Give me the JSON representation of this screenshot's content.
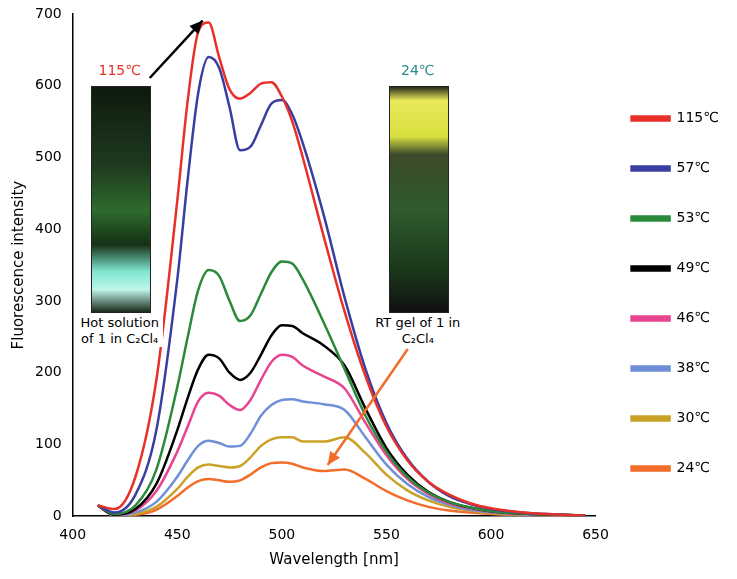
{
  "chart_data": {
    "type": "line",
    "x_label": "Wavelength [nm]",
    "y_label": "Fluorescence intensity",
    "x": [
      412,
      420,
      430,
      440,
      450,
      455,
      460,
      465,
      470,
      475,
      480,
      485,
      490,
      495,
      500,
      505,
      510,
      520,
      530,
      540,
      550,
      560,
      570,
      580,
      590,
      600,
      620,
      645
    ],
    "series": [
      {
        "name": "115℃",
        "color": "#e8302a",
        "values": [
          15,
          10,
          55,
          190,
          440,
          580,
          675,
          688,
          640,
          595,
          582,
          590,
          603,
          605,
          585,
          550,
          500,
          390,
          285,
          195,
          125,
          78,
          48,
          30,
          18,
          11,
          4,
          1
        ]
      },
      {
        "name": "57℃",
        "color": "#3a3ea0",
        "values": [
          15,
          5,
          30,
          120,
          330,
          470,
          590,
          640,
          625,
          570,
          510,
          515,
          545,
          575,
          580,
          560,
          520,
          420,
          305,
          205,
          130,
          80,
          48,
          28,
          17,
          10,
          4,
          1
        ]
      },
      {
        "name": "53℃",
        "color": "#2a8a3a",
        "values": [
          15,
          3,
          15,
          65,
          180,
          250,
          315,
          343,
          335,
          300,
          272,
          280,
          310,
          340,
          355,
          352,
          330,
          270,
          205,
          140,
          90,
          55,
          33,
          20,
          12,
          7,
          3,
          1
        ]
      },
      {
        "name": "49℃",
        "color": "#000000",
        "values": [
          15,
          2,
          10,
          45,
          120,
          165,
          205,
          225,
          220,
          200,
          190,
          200,
          225,
          252,
          266,
          265,
          255,
          238,
          210,
          150,
          95,
          58,
          34,
          20,
          12,
          7,
          3,
          1
        ]
      },
      {
        "name": "46℃",
        "color": "#e8448f",
        "values": [
          15,
          2,
          8,
          35,
          90,
          125,
          160,
          172,
          168,
          155,
          148,
          162,
          190,
          215,
          225,
          222,
          210,
          195,
          178,
          130,
          85,
          52,
          31,
          18,
          11,
          6,
          3,
          1
        ]
      },
      {
        "name": "38℃",
        "color": "#6f8fd6",
        "values": [
          15,
          1,
          5,
          20,
          55,
          78,
          98,
          105,
          102,
          97,
          98,
          115,
          140,
          155,
          162,
          163,
          160,
          156,
          148,
          110,
          72,
          45,
          27,
          16,
          9,
          5,
          2,
          1
        ]
      },
      {
        "name": "30℃",
        "color": "#c9a227",
        "values": [
          15,
          1,
          3,
          13,
          38,
          55,
          68,
          72,
          70,
          68,
          70,
          82,
          98,
          107,
          110,
          110,
          104,
          104,
          110,
          88,
          58,
          36,
          22,
          13,
          8,
          4,
          2,
          1
        ]
      },
      {
        "name": "24℃",
        "color": "#f26c2b",
        "values": [
          15,
          1,
          2,
          9,
          28,
          40,
          49,
          52,
          50,
          48,
          50,
          58,
          68,
          74,
          75,
          73,
          68,
          63,
          65,
          52,
          35,
          22,
          13,
          8,
          5,
          3,
          1,
          0
        ]
      }
    ],
    "xlim": [
      400,
      650
    ],
    "xticks": [
      400,
      450,
      500,
      550,
      600,
      650
    ],
    "ylim": [
      0,
      700
    ],
    "yticks": [
      0,
      100,
      200,
      300,
      400,
      500,
      600,
      700
    ],
    "grid": false,
    "legend": "right",
    "annotations": [
      "115℃",
      "Hot solution of 1 in C₂Cl₄",
      "24℃",
      "RT gel of 1 in C₂Cl₄"
    ]
  }
}
